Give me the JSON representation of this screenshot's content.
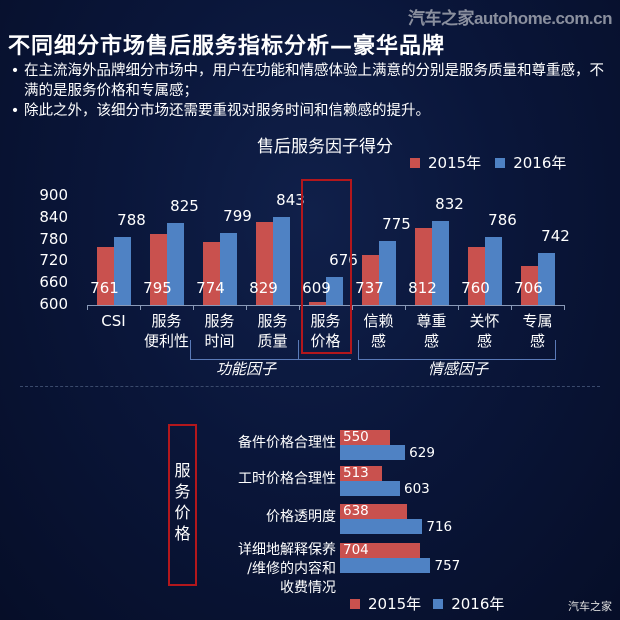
{
  "watermark_top": "汽车之家autohome.com.cn",
  "watermark_bottom": "汽车之家",
  "title": "不同细分市场售后服务指标分析—豪华品牌",
  "bullets": [
    "在主流海外品牌细分市场中，用户在功能和情感体验上满意的分别是服务质量和尊重感，不满的是服务价格和专属感；",
    "除此之外，该细分市场还需要重视对服务时间和信赖感的提升。"
  ],
  "colors": {
    "y2015": "#c9514e",
    "y2016": "#4f82c4",
    "highlight_box": "#b3171c"
  },
  "chart_data": [
    {
      "type": "bar",
      "title": "售后服务因子得分",
      "categories": [
        "CSI",
        "服务便利性",
        "服务时间",
        "服务质量",
        "服务价格",
        "信赖感",
        "尊重感",
        "关怀感",
        "专属感"
      ],
      "category_lines": [
        [
          "CSI"
        ],
        [
          "服务",
          "便利性"
        ],
        [
          "服务",
          "时间"
        ],
        [
          "服务",
          "质量"
        ],
        [
          "服务",
          "价格"
        ],
        [
          "信赖",
          "感"
        ],
        [
          "尊重",
          "感"
        ],
        [
          "关怀",
          "感"
        ],
        [
          "专属",
          "感"
        ]
      ],
      "series": [
        {
          "name": "2015年",
          "values": [
            761,
            795,
            774,
            829,
            609,
            737,
            812,
            760,
            706
          ]
        },
        {
          "name": "2016年",
          "values": [
            788,
            825,
            799,
            843,
            676,
            775,
            832,
            786,
            742
          ]
        }
      ],
      "yticks": [
        900,
        840,
        780,
        720,
        660,
        600
      ],
      "ylim": [
        600,
        900
      ],
      "groups": [
        {
          "label": "功能因子",
          "categories": [
            "服务便利性",
            "服务时间",
            "服务质量",
            "服务价格"
          ]
        },
        {
          "label": "情感因子",
          "categories": [
            "信赖感",
            "尊重感",
            "关怀感",
            "专属感"
          ]
        }
      ],
      "highlighted_category": "服务价格",
      "legend": [
        "2015年",
        "2016年"
      ],
      "legend_position": "top-right",
      "grid": false
    },
    {
      "type": "bar",
      "orientation": "horizontal",
      "title": "服务价格",
      "categories": [
        "备件价格合理性",
        "工时价格合理性",
        "价格透明度",
        "详细地解释保养/维修的内容和收费情况"
      ],
      "category_lines": [
        [
          "备件价格合理性"
        ],
        [
          "工时价格合理性"
        ],
        [
          "价格透明度"
        ],
        [
          "详细地解释保养",
          "/维修的内容和",
          "收费情况"
        ]
      ],
      "series": [
        {
          "name": "2015年",
          "values": [
            550,
            513,
            638,
            704
          ]
        },
        {
          "name": "2016年",
          "values": [
            629,
            603,
            716,
            757
          ]
        }
      ],
      "legend": [
        "2015年",
        "2016年"
      ],
      "legend_position": "bottom",
      "grid": false
    }
  ]
}
